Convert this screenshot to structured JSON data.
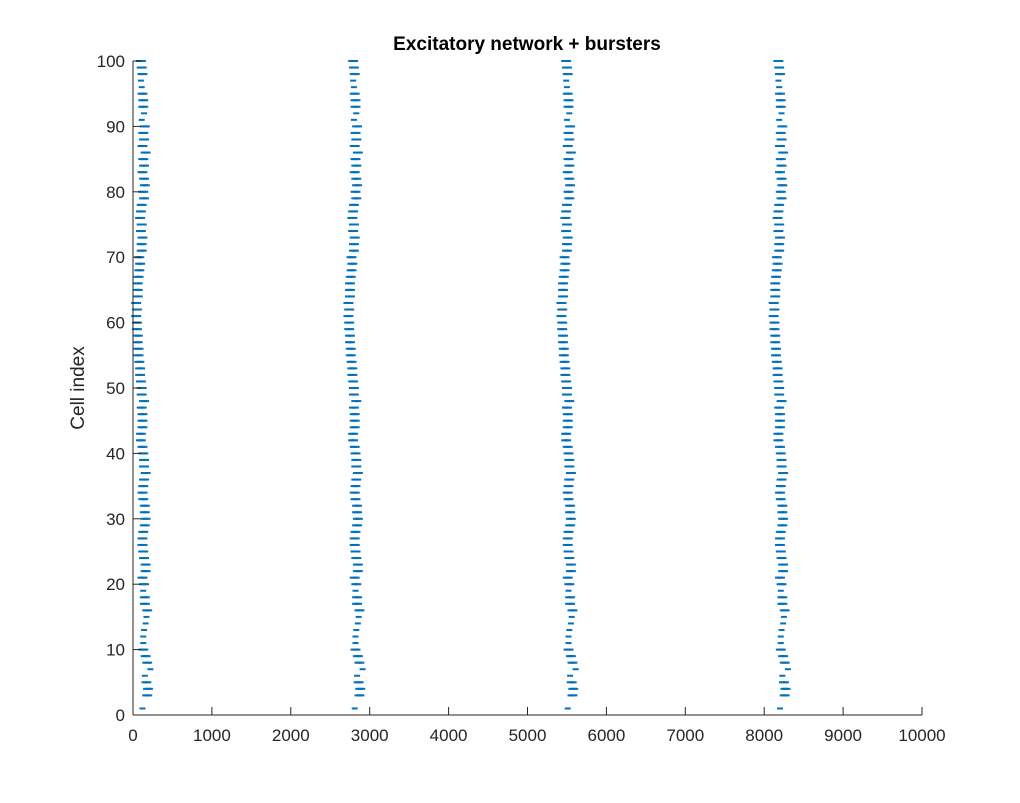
{
  "chart_data": {
    "type": "scatter",
    "title": "Excitatory network + bursters",
    "xlabel": "",
    "ylabel": "Cell index",
    "xlim": [
      0,
      10000
    ],
    "ylim": [
      0,
      100
    ],
    "xticks": [
      0,
      1000,
      2000,
      3000,
      4000,
      5000,
      6000,
      7000,
      8000,
      9000,
      10000
    ],
    "yticks": [
      0,
      10,
      20,
      30,
      40,
      50,
      60,
      70,
      80,
      90,
      100
    ],
    "grid": false,
    "legend": "none",
    "marker": "short horizontal dash",
    "colors": {
      "spikes": "#0072bd",
      "axes": "#262626",
      "background": "#ffffff"
    },
    "bursts": [
      {
        "center": 120,
        "spikes_per_cell": 3,
        "spike_interval": 25
      },
      {
        "center": 2810,
        "spikes_per_cell": 3,
        "spike_interval": 25
      },
      {
        "center": 5510,
        "spikes_per_cell": 3,
        "spike_interval": 25
      },
      {
        "center": 8200,
        "spikes_per_cell": 3,
        "spike_interval": 25
      }
    ],
    "cell_offsets": [
      0,
      40,
      60,
      70,
      50,
      30,
      100,
      60,
      40,
      10,
      10,
      10,
      20,
      40,
      50,
      60,
      30,
      30,
      10,
      20,
      0,
      40,
      40,
      20,
      10,
      0,
      0,
      10,
      30,
      40,
      30,
      30,
      10,
      0,
      10,
      20,
      40,
      20,
      20,
      10,
      0,
      -20,
      -20,
      0,
      0,
      0,
      -10,
      20,
      -10,
      -10,
      -20,
      -30,
      -30,
      -40,
      -50,
      -50,
      -60,
      -60,
      -70,
      -70,
      -80,
      -70,
      -80,
      -60,
      -60,
      -60,
      -50,
      -40,
      -30,
      -40,
      -10,
      -10,
      0,
      -20,
      -10,
      -30,
      -20,
      -10,
      20,
      10,
      30,
      20,
      0,
      20,
      10,
      40,
      0,
      20,
      10,
      30,
      -10,
      20,
      10,
      10,
      0,
      -10,
      -20,
      0,
      -10,
      -20
    ],
    "bursting_cells": [
      3,
      4,
      5,
      8,
      9,
      10,
      16,
      17,
      18,
      20,
      21,
      22,
      23,
      24,
      25,
      26,
      27,
      28,
      29,
      30,
      31,
      32,
      33,
      34,
      35,
      36,
      37,
      38,
      39,
      40,
      41,
      42,
      43,
      44,
      45,
      46,
      47,
      48,
      49,
      50,
      51,
      52,
      53,
      54,
      55,
      56,
      57,
      58,
      59,
      60,
      61,
      62,
      63,
      64,
      65,
      66,
      67,
      68,
      69,
      70,
      71,
      72,
      73,
      74,
      75,
      76,
      77,
      78,
      79,
      80,
      81,
      82,
      83,
      84,
      85,
      86,
      87,
      88,
      89,
      90,
      93,
      94,
      95,
      98,
      99,
      100
    ],
    "single_spike_cells": [
      1,
      6,
      7,
      11,
      12,
      13,
      14,
      15,
      19,
      91,
      92,
      96,
      97
    ]
  }
}
